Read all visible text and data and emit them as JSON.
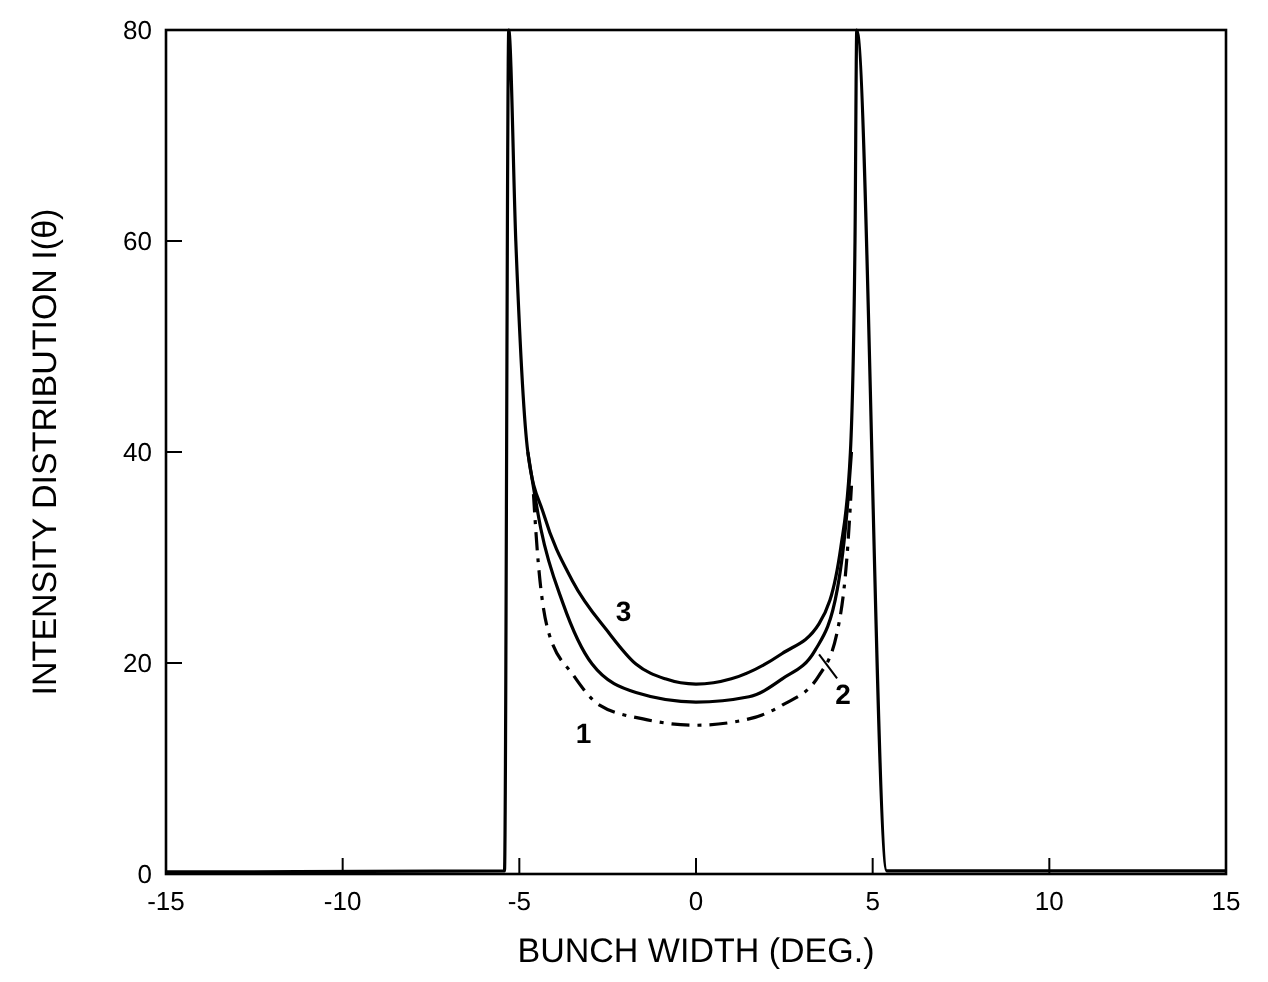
{
  "chart_data": {
    "type": "line",
    "xlabel": "BUNCH WIDTH (DEG.)",
    "ylabel": "INTENSITY DISTRIBUTION I(θ)",
    "xlim": [
      -15,
      15
    ],
    "xticks": [
      -15,
      -10,
      -5,
      0,
      5,
      10,
      15
    ],
    "ylim": [
      0,
      80
    ],
    "yticks": [
      0,
      20,
      40,
      60,
      80
    ],
    "grid": false,
    "series": [
      {
        "name": "1",
        "color": "#000000",
        "line_style": "dashed",
        "x": [
          -4.6,
          -4.5,
          -4.18,
          -3.46,
          -2.73,
          -1.5,
          0,
          1.5,
          2.44,
          3.48,
          4.0,
          4.3,
          4.4
        ],
        "values": [
          36,
          31,
          23,
          18.8,
          16,
          14.7,
          14.1,
          14.7,
          16,
          18.8,
          23,
          31.3,
          36.8
        ]
      },
      {
        "name": "2",
        "color": "#000000",
        "line_style": "solid",
        "x": [
          -4.76,
          -4.39,
          -3.77,
          -2.94,
          -1.7,
          0,
          1.5,
          2.44,
          3.37,
          4.0,
          4.3,
          4.4
        ],
        "values": [
          40,
          32.7,
          25.7,
          19.9,
          17.2,
          16.3,
          16.8,
          18.5,
          21.2,
          27,
          35.4,
          40
        ]
      },
      {
        "name": "3",
        "color": "#000000",
        "line_style": "solid",
        "x": [
          -15,
          -5.42,
          -5.3,
          -5.1,
          -4.76,
          -4.3,
          -3.5,
          -2.5,
          -1.7,
          -0.87,
          0,
          1,
          2.44,
          3.48,
          4.1,
          4.37,
          4.5,
          4.55,
          5.4,
          15
        ],
        "values": [
          0.2,
          0.3,
          80,
          60,
          40,
          34,
          27.8,
          23,
          19.9,
          18.5,
          18,
          18.5,
          20.9,
          23.7,
          31,
          40,
          60,
          80,
          0.3,
          0.3
        ]
      }
    ]
  }
}
